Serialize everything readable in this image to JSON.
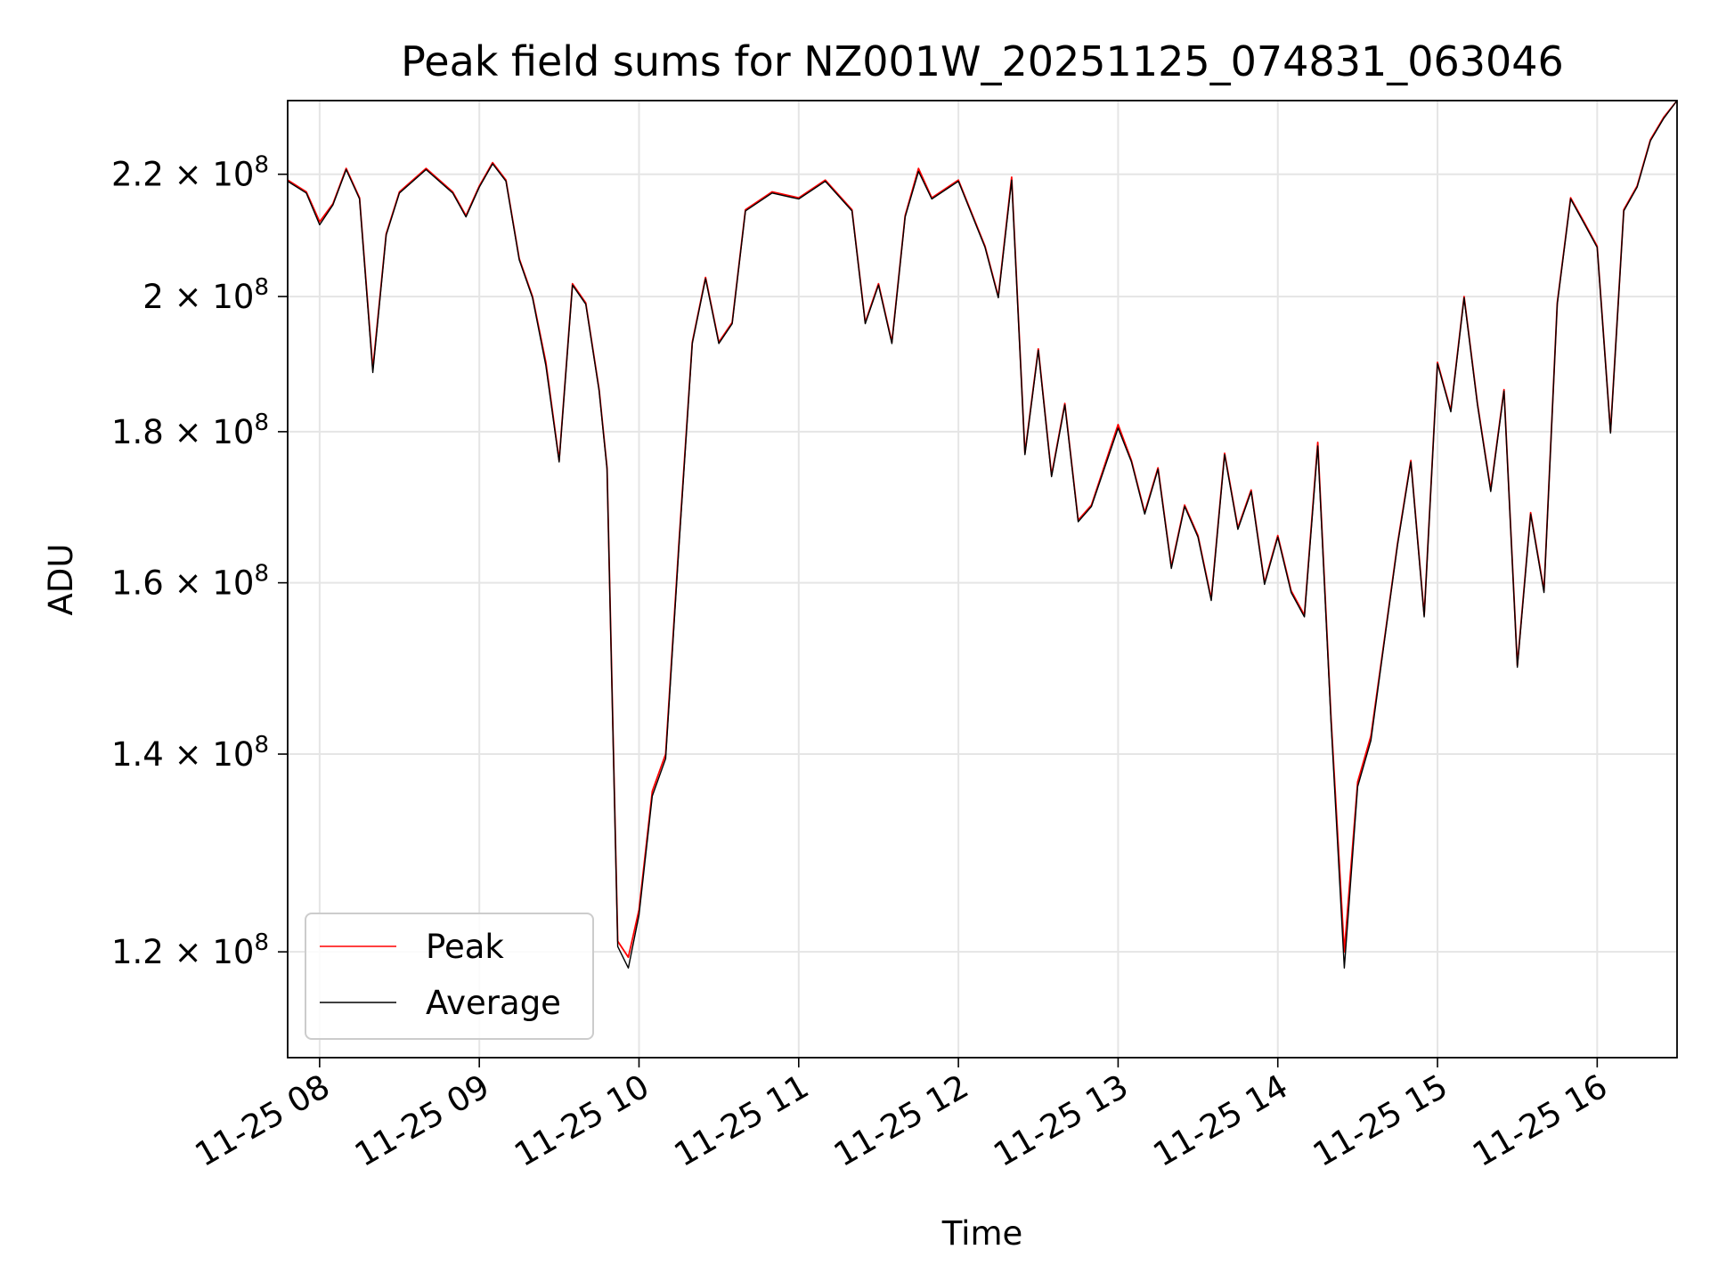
{
  "chart_data": {
    "type": "line",
    "title": "Peak field sums for NZ001W_20251125_074831_063046",
    "xlabel": "Time",
    "ylabel": "ADU",
    "y_scale": "log",
    "xlim": [
      "2025-11-25 07:48",
      "2025-11-25 16:30"
    ],
    "ylim": [
      110500000,
      233000000
    ],
    "x_tick_labels": [
      "11-25 08",
      "11-25 09",
      "11-25 10",
      "11-25 11",
      "11-25 12",
      "11-25 13",
      "11-25 14",
      "11-25 15",
      "11-25 16"
    ],
    "x_tick_times": [
      "2025-11-25 08:00",
      "2025-11-25 09:00",
      "2025-11-25 10:00",
      "2025-11-25 11:00",
      "2025-11-25 12:00",
      "2025-11-25 13:00",
      "2025-11-25 14:00",
      "2025-11-25 15:00",
      "2025-11-25 16:00"
    ],
    "y_ticks": [
      {
        "value": 120000000,
        "mantissa": "1.2",
        "exponent": "8"
      },
      {
        "value": 140000000,
        "mantissa": "1.4",
        "exponent": "8"
      },
      {
        "value": 160000000,
        "mantissa": "1.6",
        "exponent": "8"
      },
      {
        "value": 180000000,
        "mantissa": "1.8",
        "exponent": "8"
      },
      {
        "value": 200000000,
        "mantissa": "2",
        "exponent": "8"
      },
      {
        "value": 220000000,
        "mantissa": "2.2",
        "exponent": "8"
      }
    ],
    "grid": true,
    "legend_position": "lower-left",
    "x": [
      "2025-11-25 07:48",
      "2025-11-25 07:55",
      "2025-11-25 08:00",
      "2025-11-25 08:05",
      "2025-11-25 08:10",
      "2025-11-25 08:15",
      "2025-11-25 08:20",
      "2025-11-25 08:25",
      "2025-11-25 08:30",
      "2025-11-25 08:40",
      "2025-11-25 08:50",
      "2025-11-25 08:55",
      "2025-11-25 09:00",
      "2025-11-25 09:05",
      "2025-11-25 09:10",
      "2025-11-25 09:15",
      "2025-11-25 09:20",
      "2025-11-25 09:25",
      "2025-11-25 09:30",
      "2025-11-25 09:35",
      "2025-11-25 09:40",
      "2025-11-25 09:45",
      "2025-11-25 09:48",
      "2025-11-25 09:52",
      "2025-11-25 09:56",
      "2025-11-25 10:00",
      "2025-11-25 10:05",
      "2025-11-25 10:10",
      "2025-11-25 10:15",
      "2025-11-25 10:20",
      "2025-11-25 10:25",
      "2025-11-25 10:30",
      "2025-11-25 10:35",
      "2025-11-25 10:40",
      "2025-11-25 10:50",
      "2025-11-25 11:00",
      "2025-11-25 11:10",
      "2025-11-25 11:20",
      "2025-11-25 11:25",
      "2025-11-25 11:30",
      "2025-11-25 11:35",
      "2025-11-25 11:40",
      "2025-11-25 11:45",
      "2025-11-25 11:50",
      "2025-11-25 12:00",
      "2025-11-25 12:10",
      "2025-11-25 12:15",
      "2025-11-25 12:20",
      "2025-11-25 12:25",
      "2025-11-25 12:30",
      "2025-11-25 12:35",
      "2025-11-25 12:40",
      "2025-11-25 12:45",
      "2025-11-25 12:50",
      "2025-11-25 13:00",
      "2025-11-25 13:05",
      "2025-11-25 13:10",
      "2025-11-25 13:15",
      "2025-11-25 13:20",
      "2025-11-25 13:25",
      "2025-11-25 13:30",
      "2025-11-25 13:35",
      "2025-11-25 13:40",
      "2025-11-25 13:45",
      "2025-11-25 13:50",
      "2025-11-25 13:55",
      "2025-11-25 14:00",
      "2025-11-25 14:05",
      "2025-11-25 14:10",
      "2025-11-25 14:15",
      "2025-11-25 14:20",
      "2025-11-25 14:25",
      "2025-11-25 14:30",
      "2025-11-25 14:35",
      "2025-11-25 14:40",
      "2025-11-25 14:45",
      "2025-11-25 14:50",
      "2025-11-25 14:55",
      "2025-11-25 15:00",
      "2025-11-25 15:05",
      "2025-11-25 15:10",
      "2025-11-25 15:15",
      "2025-11-25 15:20",
      "2025-11-25 15:25",
      "2025-11-25 15:30",
      "2025-11-25 15:35",
      "2025-11-25 15:40",
      "2025-11-25 15:45",
      "2025-11-25 15:50",
      "2025-11-25 15:55",
      "2025-11-25 16:00",
      "2025-11-25 16:05",
      "2025-11-25 16:10",
      "2025-11-25 16:15",
      "2025-11-25 16:20",
      "2025-11-25 16:25",
      "2025-11-25 16:30"
    ],
    "series": [
      {
        "name": "Peak",
        "color": "#ff0000",
        "values": [
          219000000,
          217000000,
          212000000,
          215000000,
          221000000,
          216000000,
          189000000,
          210000000,
          217000000,
          221000000,
          217000000,
          213000000,
          218000000,
          222000000,
          219000000,
          206000000,
          200000000,
          190000000,
          176000000,
          202000000,
          199000000,
          186000000,
          175000000,
          121000000,
          119500000,
          124000000,
          136000000,
          140000000,
          165000000,
          193000000,
          203000000,
          193000000,
          196000000,
          214000000,
          217000000,
          216000000,
          219000000,
          214000000,
          196000000,
          202000000,
          193000000,
          213000000,
          221000000,
          216000000,
          219000000,
          208000000,
          200000000,
          219500000,
          177000000,
          192000000,
          174000000,
          184000000,
          168000000,
          170000000,
          181000000,
          176000000,
          169000000,
          175000000,
          162000000,
          170000000,
          166000000,
          158000000,
          177000000,
          167000000,
          172000000,
          160000000,
          166000000,
          159000000,
          156000000,
          178500000,
          144000000,
          120000000,
          137000000,
          142000000,
          153000000,
          165000000,
          176000000,
          156000000,
          190000000,
          183000000,
          200000000,
          184000000,
          172000000,
          186000000,
          150000000,
          169000000,
          159000000,
          199000000,
          216000000,
          212000000,
          208000000,
          180000000,
          214000000,
          218000000,
          226000000,
          230000000,
          233000000
        ]
      },
      {
        "name": "Average",
        "color": "#000000",
        "values": [
          218800000,
          216800000,
          211500000,
          214800000,
          220800000,
          215800000,
          188500000,
          209800000,
          216800000,
          220800000,
          216800000,
          212800000,
          217800000,
          221800000,
          218800000,
          205800000,
          199800000,
          189500000,
          175800000,
          201800000,
          198800000,
          185800000,
          174800000,
          120500000,
          118500000,
          123500000,
          135500000,
          139500000,
          164500000,
          192800000,
          202800000,
          192800000,
          195800000,
          213800000,
          216800000,
          215800000,
          218800000,
          213800000,
          195800000,
          201800000,
          192800000,
          212800000,
          220500000,
          215800000,
          218800000,
          207800000,
          199800000,
          219000000,
          176800000,
          191800000,
          173800000,
          183800000,
          167800000,
          169800000,
          180500000,
          175800000,
          168800000,
          174800000,
          161800000,
          169800000,
          165800000,
          157800000,
          176800000,
          166800000,
          171800000,
          159800000,
          165800000,
          158800000,
          155800000,
          178000000,
          143500000,
          118500000,
          136500000,
          141500000,
          152800000,
          164800000,
          175800000,
          155800000,
          189800000,
          182800000,
          199800000,
          183800000,
          171800000,
          185800000,
          149800000,
          168800000,
          158800000,
          198800000,
          215800000,
          211800000,
          207800000,
          179800000,
          213800000,
          217800000,
          225800000,
          229800000,
          233000000
        ]
      }
    ]
  }
}
